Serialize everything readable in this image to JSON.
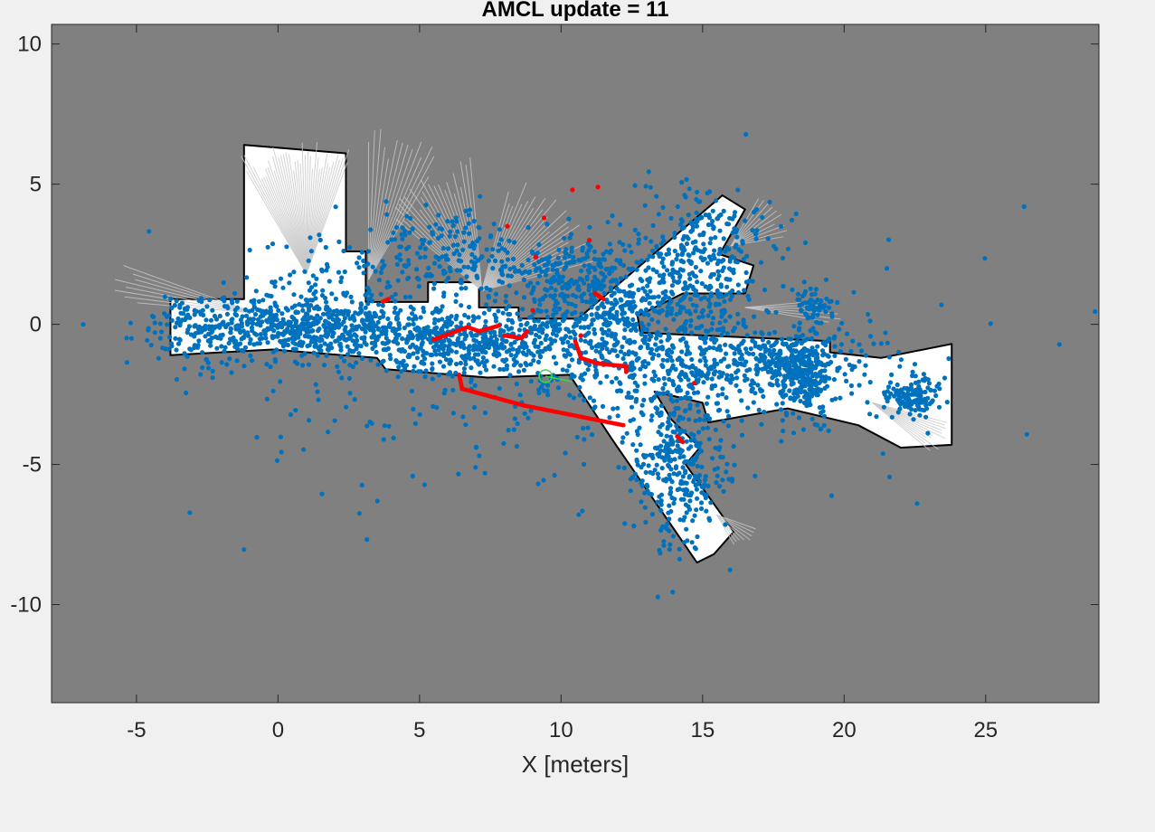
{
  "chart_data": {
    "type": "scatter",
    "title": "AMCL update = 11",
    "xlabel": "X [meters]",
    "ylabel": "",
    "xlim": [
      -8,
      29
    ],
    "ylim": [
      -13.5,
      10.7
    ],
    "xticks": [
      -5,
      0,
      5,
      10,
      15,
      20,
      25
    ],
    "yticks": [
      10,
      5,
      0,
      -5,
      -10
    ],
    "grid": false,
    "colors": {
      "background": "#808080",
      "free_space": "#ffffff",
      "wall": "#000000",
      "particles": "#0072bd",
      "scan": "#ff0000",
      "pose": "#3cdc3c"
    },
    "map_free_space": [
      [
        [
          -3.8,
          0.9
        ],
        [
          -1.2,
          0.9
        ],
        [
          -1.2,
          2.1
        ],
        [
          -1.2,
          6.4
        ],
        [
          2.4,
          6.1
        ],
        [
          2.4,
          2.6
        ],
        [
          3.1,
          2.6
        ],
        [
          3.1,
          0.8
        ],
        [
          5.3,
          0.8
        ],
        [
          5.3,
          1.5
        ],
        [
          7.1,
          1.5
        ],
        [
          7.1,
          0.6
        ],
        [
          8.5,
          0.6
        ],
        [
          8.5,
          0.2
        ],
        [
          10.6,
          0.2
        ],
        [
          15.7,
          4.6
        ],
        [
          16.5,
          4.1
        ],
        [
          15.6,
          2.5
        ],
        [
          16.8,
          2.1
        ],
        [
          16.5,
          1.1
        ],
        [
          14.3,
          1.1
        ],
        [
          12.7,
          0.3
        ],
        [
          12.8,
          -0.3
        ],
        [
          19.5,
          -0.6
        ],
        [
          19.5,
          -1.0
        ],
        [
          21.3,
          -1.2
        ],
        [
          23.8,
          -0.7
        ],
        [
          23.8,
          -4.3
        ],
        [
          22.0,
          -4.4
        ],
        [
          20.5,
          -3.6
        ],
        [
          18.0,
          -3.0
        ],
        [
          15.2,
          -3.5
        ],
        [
          15.0,
          -2.8
        ],
        [
          13.3,
          -2.4
        ],
        [
          13.9,
          -3.4
        ],
        [
          14.9,
          -4.4
        ],
        [
          14.4,
          -5.0
        ],
        [
          16.1,
          -7.4
        ],
        [
          15.4,
          -8.2
        ],
        [
          14.8,
          -8.5
        ],
        [
          11.8,
          -4.1
        ],
        [
          10.3,
          -1.8
        ],
        [
          7.4,
          -1.9
        ],
        [
          3.8,
          -1.6
        ],
        [
          3.5,
          -1.2
        ],
        [
          -0.2,
          -0.9
        ],
        [
          -3.8,
          -1.1
        ]
      ]
    ],
    "scan_segments": [
      [
        [
          5.5,
          -0.55
        ],
        [
          6.7,
          -0.1
        ],
        [
          7.1,
          -0.25
        ],
        [
          7.8,
          -0.05
        ]
      ],
      [
        [
          8.0,
          -0.4
        ],
        [
          8.6,
          -0.5
        ],
        [
          8.8,
          -0.25
        ]
      ],
      [
        [
          10.5,
          -0.6
        ],
        [
          10.7,
          -1.2
        ],
        [
          11.3,
          -1.4
        ],
        [
          12.3,
          -1.5
        ],
        [
          12.3,
          -1.7
        ]
      ],
      [
        [
          6.4,
          -1.8
        ],
        [
          6.5,
          -2.3
        ],
        [
          8.7,
          -2.9
        ],
        [
          12.2,
          -3.6
        ]
      ],
      [
        [
          3.7,
          0.8
        ],
        [
          3.9,
          0.9
        ]
      ],
      [
        [
          11.2,
          1.1
        ],
        [
          11.5,
          0.9
        ]
      ],
      [
        [
          14.1,
          -4.0
        ],
        [
          14.3,
          -4.2
        ]
      ]
    ],
    "scan_points": [
      [
        9.4,
        3.8
      ],
      [
        10.4,
        4.8
      ],
      [
        11.3,
        4.9
      ],
      [
        11.0,
        3.0
      ],
      [
        9.1,
        2.4
      ],
      [
        8.1,
        3.5
      ],
      [
        9.0,
        0.5
      ],
      [
        14.7,
        -2.1
      ],
      [
        10.7,
        -0.4
      ]
    ],
    "particle_clusters": [
      {
        "x": 1.0,
        "y": -0.1,
        "sx": 2.4,
        "sy": 0.55,
        "count": 620
      },
      {
        "x": 6.8,
        "y": -0.6,
        "sx": 1.9,
        "sy": 0.55,
        "count": 420
      },
      {
        "x": 11.8,
        "y": 0.1,
        "sx": 1.6,
        "sy": 1.4,
        "count": 520
      },
      {
        "x": 16.6,
        "y": -1.4,
        "sx": 2.3,
        "sy": 0.75,
        "count": 420
      },
      {
        "x": 18.6,
        "y": -1.9,
        "sx": 0.45,
        "sy": 0.75,
        "count": 220
      },
      {
        "x": 22.4,
        "y": -2.5,
        "sx": 0.45,
        "sy": 0.35,
        "count": 130
      },
      {
        "x": 14.2,
        "y": -5.1,
        "sx": 0.9,
        "sy": 1.4,
        "count": 330
      },
      {
        "x": 15.0,
        "y": 2.3,
        "sx": 1.1,
        "sy": 1.2,
        "count": 300
      },
      {
        "x": 6.0,
        "y": 2.5,
        "sx": 1.3,
        "sy": 0.7,
        "count": 160
      },
      {
        "x": 10.3,
        "y": 1.8,
        "sx": 1.2,
        "sy": 0.6,
        "count": 160
      },
      {
        "x": 1.8,
        "y": 1.5,
        "sx": 1.3,
        "sy": 0.9,
        "count": 90
      },
      {
        "x": -2.9,
        "y": -0.2,
        "sx": 0.7,
        "sy": 0.8,
        "count": 90
      },
      {
        "x": 18.9,
        "y": 0.7,
        "sx": 0.3,
        "sy": 0.25,
        "count": 50
      },
      {
        "x": 11.0,
        "y": -1.2,
        "sx": 6.0,
        "sy": 2.4,
        "count": 400
      }
    ],
    "robot_pose": {
      "x": 9.45,
      "y": -1.85,
      "theta_deg": -12
    }
  }
}
